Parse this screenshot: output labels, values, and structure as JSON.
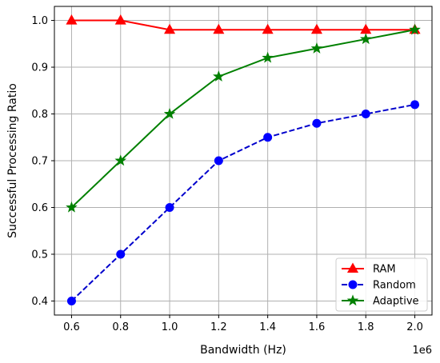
{
  "chart_data": {
    "type": "line",
    "xlabel": "Bandwidth (Hz)",
    "ylabel": "Successful Processing Ratio",
    "x_offset_label": "1e6",
    "x": [
      0.6,
      0.8,
      1.0,
      1.2,
      1.4,
      1.6,
      1.8,
      2.0
    ],
    "xlim": [
      0.53,
      2.07
    ],
    "ylim": [
      0.37,
      1.03
    ],
    "xticks": [
      "0.6",
      "0.8",
      "1.0",
      "1.2",
      "1.4",
      "1.6",
      "1.8",
      "2.0"
    ],
    "yticks": [
      "0.4",
      "0.5",
      "0.6",
      "0.7",
      "0.8",
      "0.9",
      "1.0"
    ],
    "grid": true,
    "legend_position": "bottom-right",
    "series": [
      {
        "name": "RAM",
        "values": [
          1.0,
          1.0,
          0.98,
          0.98,
          0.98,
          0.98,
          0.98,
          0.98
        ],
        "color": "#ff0000",
        "marker": "triangle",
        "marker_color": "#ff0000",
        "marker_edge": "#ff0000",
        "dash": "solid"
      },
      {
        "name": "Random",
        "values": [
          0.4,
          0.5,
          0.6,
          0.7,
          0.75,
          0.78,
          0.8,
          0.82
        ],
        "color": "#0000cc",
        "marker": "circle",
        "marker_color": "#0000ff",
        "marker_edge": "#0000ff",
        "dash": "dashed"
      },
      {
        "name": "Adaptive",
        "values": [
          0.6,
          0.7,
          0.8,
          0.88,
          0.92,
          0.94,
          0.96,
          0.98
        ],
        "color": "#008000",
        "marker": "star",
        "marker_color": "#008000",
        "marker_edge": "#008000",
        "dash": "solid"
      }
    ]
  }
}
